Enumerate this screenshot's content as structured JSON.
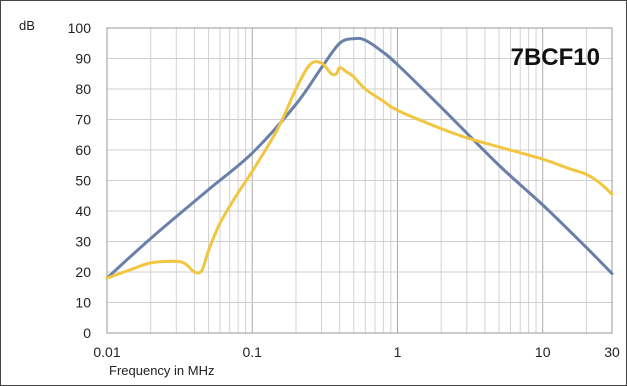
{
  "chart_data": {
    "type": "line",
    "title": "7BCF10",
    "xlabel": "Frequency in MHz",
    "ylabel": "dB",
    "x_scale": "log",
    "xlim": [
      0.01,
      30
    ],
    "ylim": [
      0,
      100
    ],
    "x_ticks": [
      0.01,
      0.1,
      1,
      10,
      30
    ],
    "x_tick_labels": [
      "0.01",
      "0.1",
      "1",
      "10",
      "30"
    ],
    "y_ticks": [
      0,
      10,
      20,
      30,
      40,
      50,
      60,
      70,
      80,
      90,
      100
    ],
    "y_tick_labels": [
      "0",
      "10",
      "20",
      "30",
      "40",
      "50",
      "60",
      "70",
      "80",
      "90",
      "100"
    ],
    "grid": true,
    "legend": "none",
    "series": [
      {
        "color": "#6a80a8",
        "x": [
          0.01,
          0.02,
          0.05,
          0.1,
          0.2,
          0.3,
          0.4,
          0.5,
          0.6,
          0.8,
          1,
          2,
          5,
          10,
          20,
          30
        ],
        "y": [
          18,
          31,
          47,
          59,
          75,
          87,
          95,
          96.5,
          96,
          92,
          88,
          74,
          55,
          42,
          28,
          19.5
        ]
      },
      {
        "color": "#f2c640",
        "x": [
          0.01,
          0.015,
          0.02,
          0.03,
          0.035,
          0.04,
          0.045,
          0.05,
          0.06,
          0.08,
          0.1,
          0.15,
          0.2,
          0.25,
          0.3,
          0.35,
          0.38,
          0.4,
          0.45,
          0.5,
          0.6,
          0.8,
          1,
          2,
          3,
          5,
          10,
          15,
          20,
          25,
          30
        ],
        "y": [
          18,
          21,
          23,
          23.5,
          22.5,
          20,
          20.5,
          27,
          36,
          46,
          53,
          67,
          80,
          88,
          88.5,
          85,
          85,
          87,
          85.5,
          84,
          80,
          76,
          73,
          67,
          64,
          61,
          57,
          54,
          52,
          49,
          45.5
        ]
      }
    ]
  }
}
